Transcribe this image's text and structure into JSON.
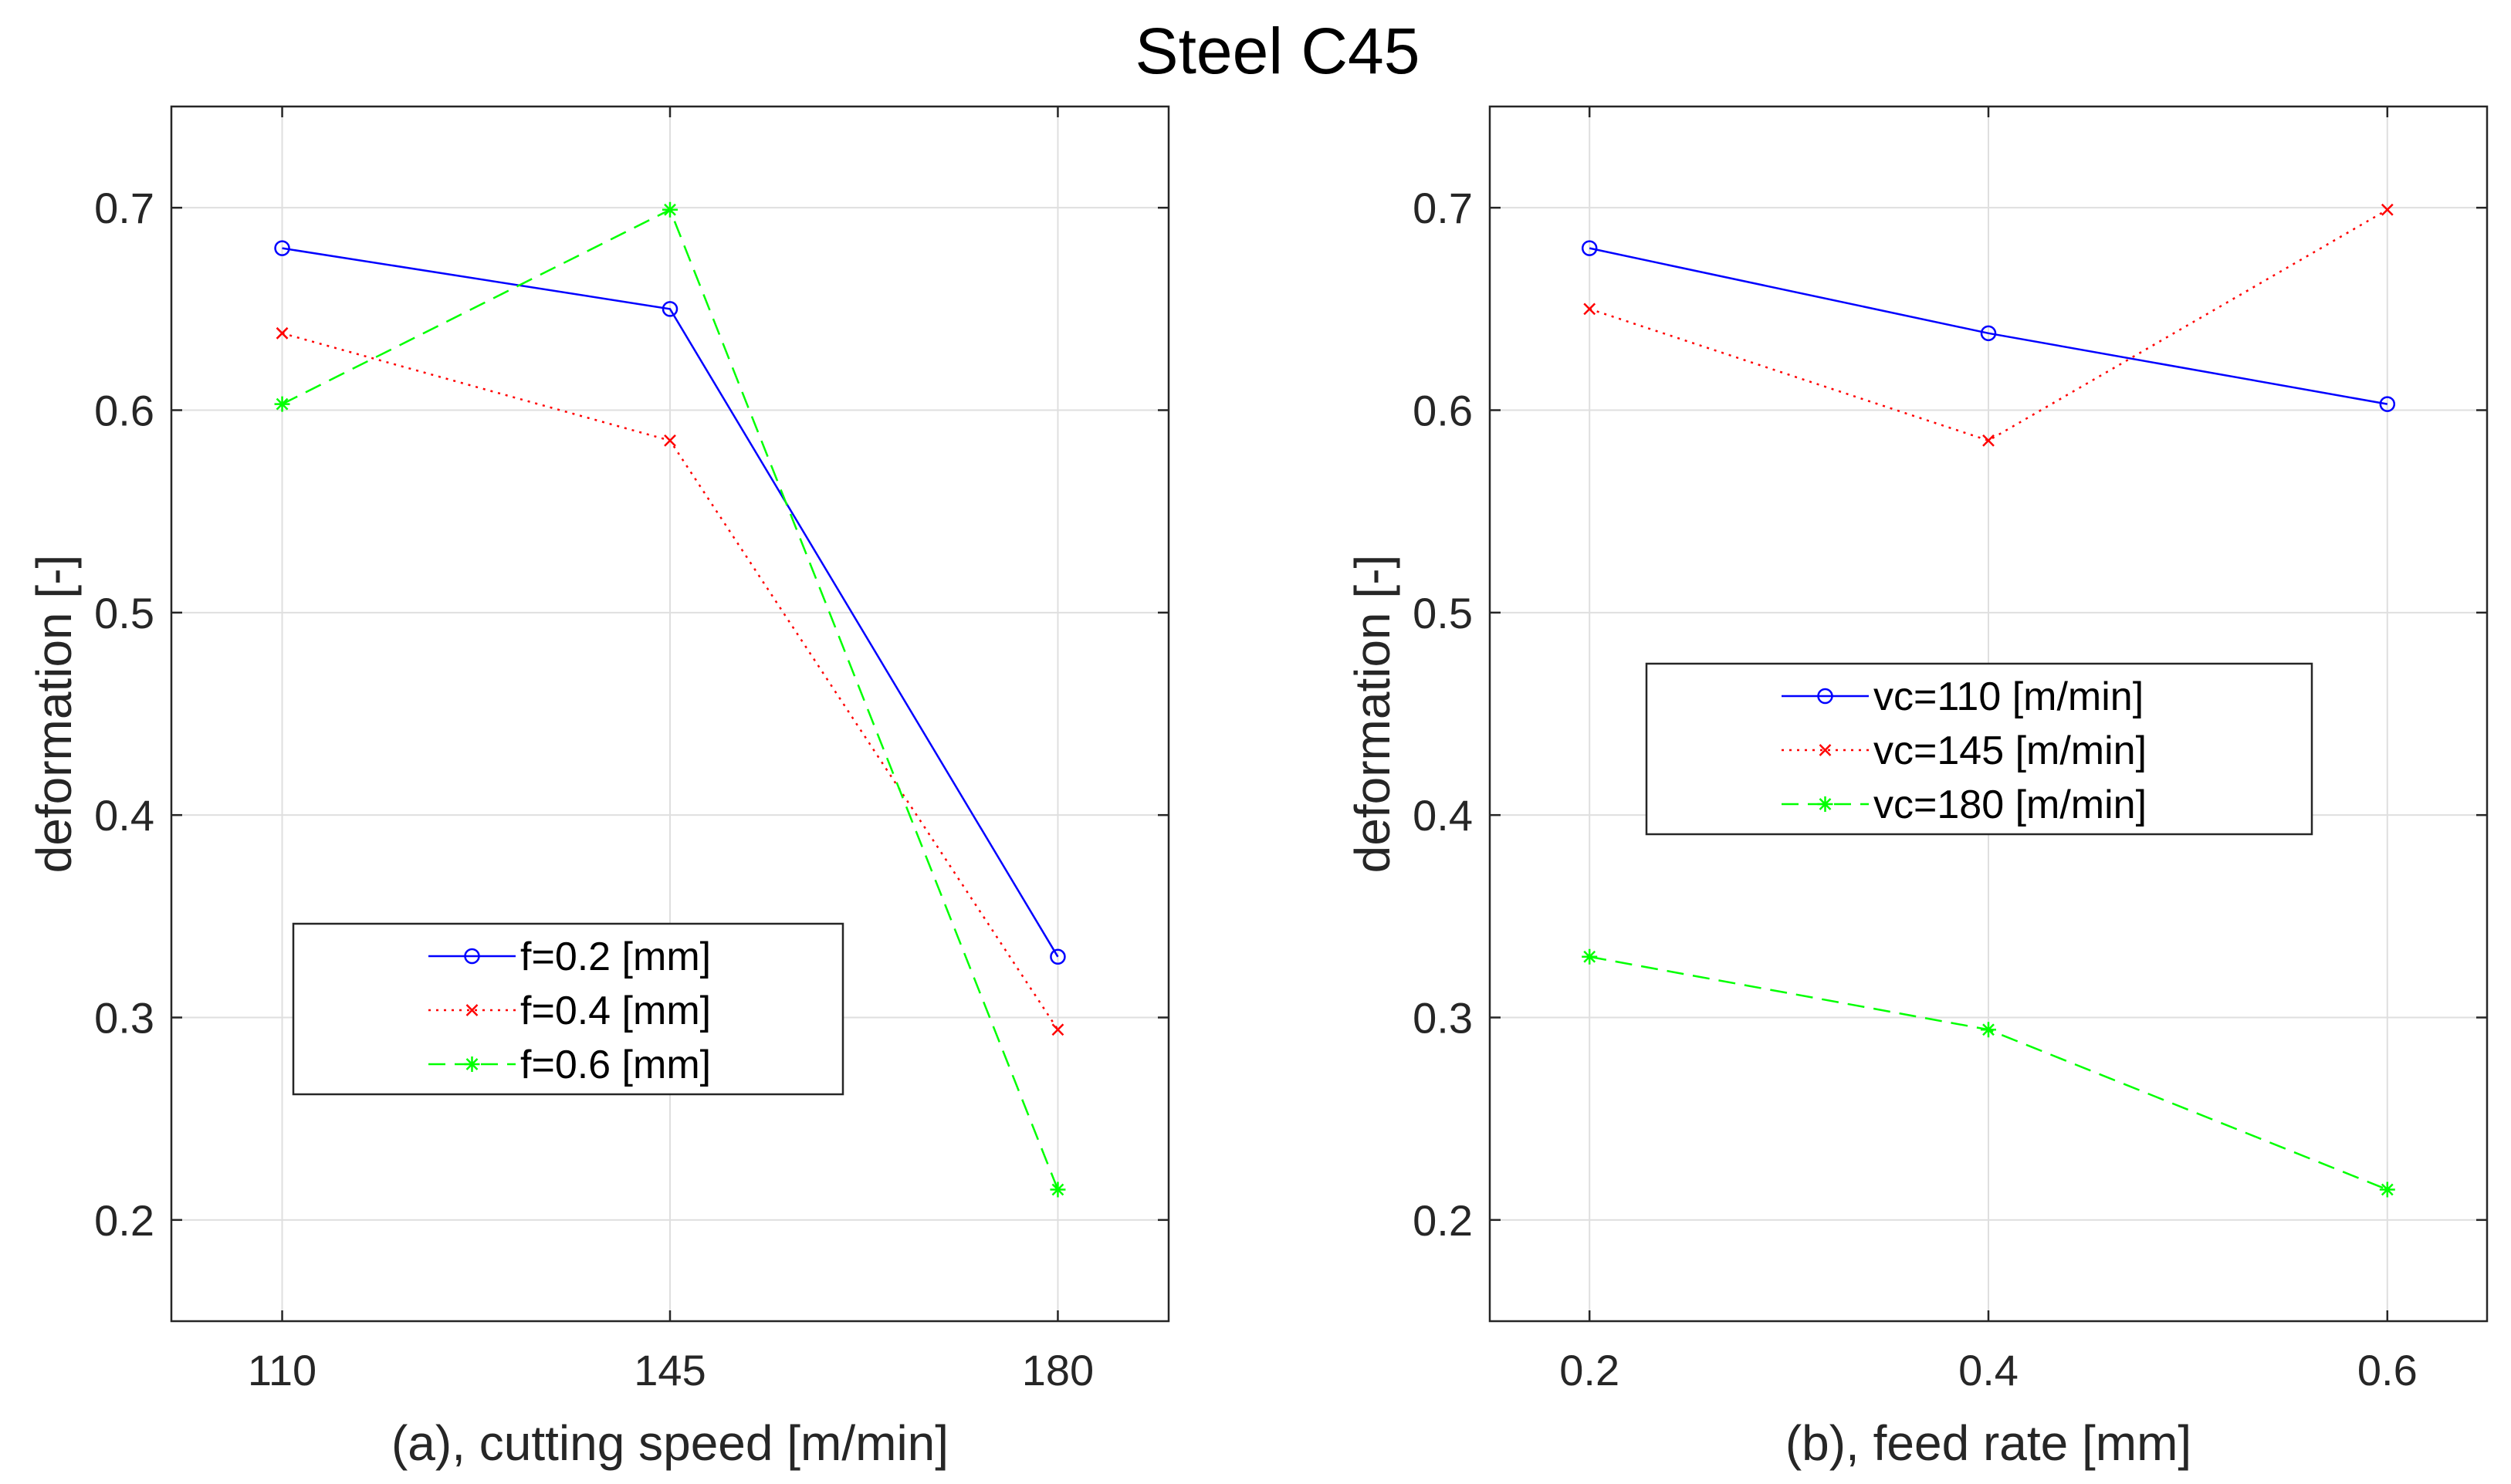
{
  "chart_data": [
    {
      "type": "line",
      "suptitle": "Steel C45",
      "xlabel": "(a), cutting speed [m/min]",
      "ylabel": "deformation [-]",
      "x": [
        110,
        145,
        180
      ],
      "xticks": [
        "110",
        "145",
        "180"
      ],
      "xlim": [
        100,
        190
      ],
      "ylim": [
        0.15,
        0.75
      ],
      "yticks": [
        "0.2",
        "0.3",
        "0.4",
        "0.5",
        "0.6",
        "0.7"
      ],
      "grid": true,
      "legend_position": "lower-left",
      "series": [
        {
          "name": "f=0.2 [mm]",
          "values": [
            0.68,
            0.65,
            0.33
          ],
          "color": "#0000ff",
          "linestyle": "solid",
          "marker": "circle"
        },
        {
          "name": "f=0.4 [mm]",
          "values": [
            0.638,
            0.585,
            0.294
          ],
          "color": "#ff0000",
          "linestyle": "dotted",
          "marker": "x"
        },
        {
          "name": "f=0.6 [mm]",
          "values": [
            0.603,
            0.699,
            0.215
          ],
          "color": "#00ff00",
          "linestyle": "dashed",
          "marker": "star"
        }
      ]
    },
    {
      "type": "line",
      "xlabel": "(b), feed rate [mm]",
      "ylabel": "deformation [-]",
      "x": [
        0.2,
        0.4,
        0.6
      ],
      "xticks": [
        "0.2",
        "0.4",
        "0.6"
      ],
      "xlim": [
        0.15,
        0.65
      ],
      "ylim": [
        0.15,
        0.75
      ],
      "yticks": [
        "0.2",
        "0.3",
        "0.4",
        "0.5",
        "0.6",
        "0.7"
      ],
      "grid": true,
      "legend_position": "center",
      "series": [
        {
          "name": "vc=110 [m/min]",
          "values": [
            0.68,
            0.638,
            0.603
          ],
          "color": "#0000ff",
          "linestyle": "solid",
          "marker": "circle"
        },
        {
          "name": "vc=145 [m/min]",
          "values": [
            0.65,
            0.585,
            0.699
          ],
          "color": "#ff0000",
          "linestyle": "dotted",
          "marker": "x"
        },
        {
          "name": "vc=180 [m/min]",
          "values": [
            0.33,
            0.294,
            0.215
          ],
          "color": "#00ff00",
          "linestyle": "dashed",
          "marker": "star"
        }
      ]
    }
  ]
}
